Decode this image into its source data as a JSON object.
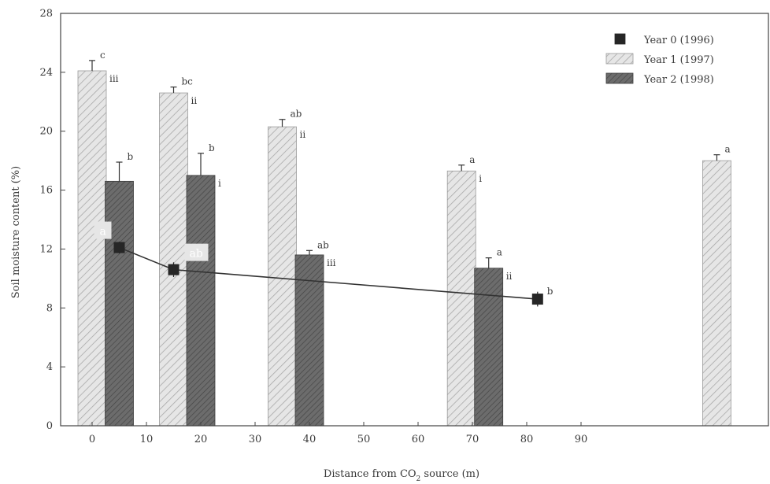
{
  "chart_data": {
    "type": "bar",
    "xlabel": "Distance from CO",
    "xlabel_sub": "2",
    "xlabel_tail": " source (m)",
    "ylabel": "Soil moisture content (%)",
    "ylim": [
      0,
      28
    ],
    "y_ticks": [
      "0",
      "4",
      "8",
      "12",
      "16",
      "20",
      "24",
      "28"
    ],
    "x_ticks": [
      "0",
      "10",
      "20",
      "30",
      "40",
      "50",
      "60",
      "70",
      "80",
      "90"
    ],
    "grid": false,
    "legend_position": "top-right",
    "legend": [
      {
        "name": "Year 0 (1996)",
        "style": "solid"
      },
      {
        "name": "Year 1 (1997)",
        "style": "light-hatch"
      },
      {
        "name": "Year 2 (1998)",
        "style": "dark-hatch"
      }
    ],
    "bars": [
      {
        "series": "Year 1 (1997)",
        "x": 0,
        "value": 24.1,
        "err": 0.7,
        "label": "c",
        "label2": "iii"
      },
      {
        "series": "Year 2 (1998)",
        "x": 5,
        "value": 16.6,
        "err": 1.3,
        "label": "b"
      },
      {
        "series": "Year 1 (1997)",
        "x": 15,
        "value": 22.6,
        "err": 0.4,
        "label": "bc",
        "label2": "ii"
      },
      {
        "series": "Year 2 (1998)",
        "x": 20,
        "value": 17.0,
        "err": 1.5,
        "label": "b",
        "label2": "i"
      },
      {
        "series": "Year 1 (1997)",
        "x": 35,
        "value": 20.3,
        "err": 0.5,
        "label": "ab",
        "label2": "ii"
      },
      {
        "series": "Year 2 (1998)",
        "x": 40,
        "value": 11.6,
        "err": 0.3,
        "label": "ab",
        "label2": "iii"
      },
      {
        "series": "Year 1 (1997)",
        "x": 68,
        "value": 17.3,
        "err": 0.4,
        "label": "a",
        "label2": "i"
      },
      {
        "series": "Year 2 (1998)",
        "x": 73,
        "value": 10.7,
        "err": 0.7,
        "label": "a",
        "label2": "ii"
      },
      {
        "series": "Year 1 (1997)",
        "x": 115,
        "value": 18.0,
        "err": 0.4,
        "label": "a"
      }
    ],
    "line_series": {
      "name": "Year 0 (1996)",
      "x": [
        5,
        15,
        82
      ],
      "y": [
        12.1,
        10.6,
        8.6
      ],
      "err": [
        0.4,
        0.5,
        0.5
      ],
      "labels": [
        "a",
        "ab",
        "b"
      ]
    }
  }
}
